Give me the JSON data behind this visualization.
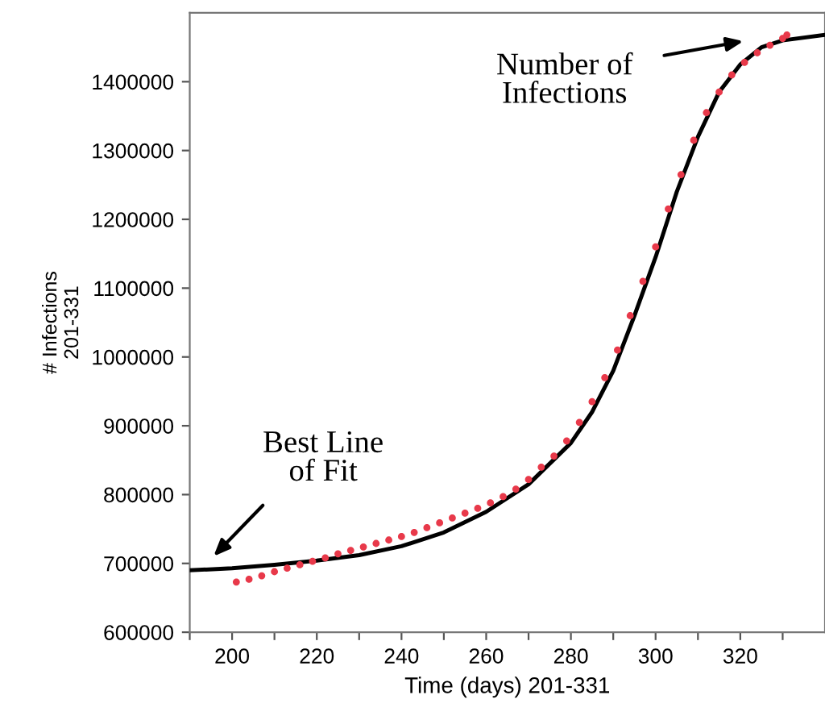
{
  "chart_data": {
    "type": "scatter",
    "xlabel": "Time (days) 201-331",
    "ylabel": "# Infections\n201-331",
    "xlim": [
      190,
      340
    ],
    "ylim": [
      600000,
      1500000
    ],
    "xticks": [
      {
        "value": 190,
        "label": null
      },
      200,
      {
        "value": 210,
        "label": null
      },
      220,
      {
        "value": 230,
        "label": null
      },
      240,
      {
        "value": 250,
        "label": null
      },
      260,
      {
        "value": 270,
        "label": null
      },
      280,
      {
        "value": 290,
        "label": null
      },
      300,
      {
        "value": 310,
        "label": null
      },
      320,
      {
        "value": 330,
        "label": null
      }
    ],
    "yticks": [
      600000,
      700000,
      800000,
      900000,
      1000000,
      1100000,
      1200000,
      1300000,
      1400000
    ],
    "grid": false,
    "legend": false,
    "series": [
      {
        "marker": "circle",
        "color": "#e8394a",
        "x": [
          201,
          204,
          207,
          210,
          213,
          216,
          219,
          222,
          225,
          228,
          231,
          234,
          237,
          240,
          243,
          246,
          249,
          252,
          255,
          258,
          261,
          264,
          267,
          270,
          273,
          276,
          279,
          282,
          285,
          288,
          291,
          294,
          297,
          300,
          303,
          306,
          309,
          312,
          315,
          318,
          321,
          324,
          327,
          330,
          331
        ],
        "values": [
          673000,
          677000,
          682000,
          688000,
          693000,
          698000,
          703000,
          708000,
          714000,
          719000,
          724000,
          729000,
          734000,
          739000,
          745000,
          752000,
          759000,
          766000,
          773000,
          780000,
          788000,
          797000,
          808000,
          822000,
          840000,
          856000,
          878000,
          905000,
          935000,
          970000,
          1010000,
          1060000,
          1110000,
          1160000,
          1215000,
          1265000,
          1315000,
          1355000,
          1385000,
          1410000,
          1428000,
          1442000,
          1453000,
          1463000,
          1468000
        ]
      },
      {
        "type": "line",
        "color": "#000000",
        "line_style": "solid",
        "x": [
          190,
          200,
          210,
          220,
          230,
          240,
          250,
          260,
          270,
          280,
          285,
          290,
          295,
          300,
          305,
          310,
          315,
          320,
          325,
          330,
          340
        ],
        "values": [
          690000,
          693000,
          698000,
          704000,
          712000,
          725000,
          745000,
          775000,
          815000,
          875000,
          920000,
          980000,
          1060000,
          1145000,
          1240000,
          1320000,
          1385000,
          1425000,
          1450000,
          1460000,
          1468000
        ]
      }
    ],
    "annotations": [
      "Number of\nInfections",
      "Best Line\nof Fit"
    ]
  }
}
